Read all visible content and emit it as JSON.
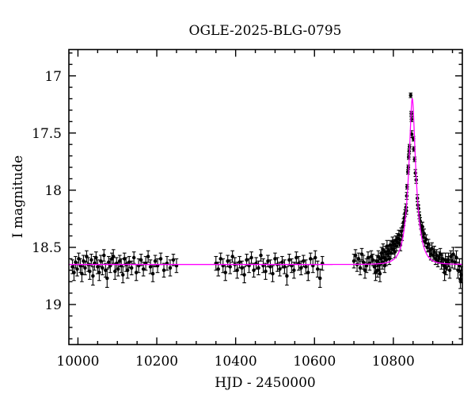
{
  "page": {
    "background": "#ffffff"
  },
  "chart_data": {
    "type": "scatter",
    "title": "OGLE-2025-BLG-0795",
    "xlabel": "HJD - 2450000",
    "ylabel": "I magnitude",
    "x_range": [
      9977,
      10975
    ],
    "y_range_mag": [
      16.77,
      19.35
    ],
    "y_axis_inverted": true,
    "grid": false,
    "legend": null,
    "x_major_ticks": [
      10000,
      10200,
      10400,
      10600,
      10800
    ],
    "x_major_tick_labels": [
      "10000",
      "10200",
      "10400",
      "10600",
      "10800"
    ],
    "x_minor_tick_step": 50,
    "y_major_ticks": [
      17,
      17.5,
      18,
      18.5,
      19
    ],
    "y_major_tick_labels": [
      "17",
      "17.5",
      "18",
      "18.5",
      "19"
    ],
    "y_minor_tick_step": 0.1,
    "colors": {
      "background": "#ffffff",
      "frame": "#000000",
      "data_points": "#000000",
      "error_bars": "#000000",
      "model_curve": "#ff00ff",
      "text": "#000000"
    },
    "model_fit": {
      "kind": "paczynski_microlensing",
      "t0_hjd": 10848,
      "tE_days": 21,
      "u0": 0.27,
      "baseline_I_mag": 18.65,
      "peak_model_I_mag": 17.2
    },
    "points": [
      [
        9986,
        18.67,
        0.06
      ],
      [
        9990,
        18.72,
        0.07
      ],
      [
        9994,
        18.63,
        0.05
      ],
      [
        9998,
        18.69,
        0.06
      ],
      [
        10002,
        18.6,
        0.05
      ],
      [
        10006,
        18.66,
        0.06
      ],
      [
        10010,
        18.73,
        0.07
      ],
      [
        10014,
        18.62,
        0.05
      ],
      [
        10018,
        18.68,
        0.06
      ],
      [
        10022,
        18.58,
        0.05
      ],
      [
        10026,
        18.65,
        0.06
      ],
      [
        10030,
        18.71,
        0.07
      ],
      [
        10034,
        18.61,
        0.05
      ],
      [
        10038,
        18.75,
        0.08
      ],
      [
        10042,
        18.64,
        0.06
      ],
      [
        10046,
        18.59,
        0.05
      ],
      [
        10050,
        18.67,
        0.06
      ],
      [
        10054,
        18.72,
        0.07
      ],
      [
        10058,
        18.62,
        0.05
      ],
      [
        10062,
        18.68,
        0.06
      ],
      [
        10066,
        18.57,
        0.05
      ],
      [
        10070,
        18.7,
        0.06
      ],
      [
        10074,
        18.77,
        0.08
      ],
      [
        10078,
        18.63,
        0.05
      ],
      [
        10082,
        18.66,
        0.06
      ],
      [
        10086,
        18.6,
        0.05
      ],
      [
        10090,
        18.58,
        0.06
      ],
      [
        10094,
        18.71,
        0.07
      ],
      [
        10098,
        18.64,
        0.05
      ],
      [
        10102,
        18.69,
        0.06
      ],
      [
        10106,
        18.62,
        0.05
      ],
      [
        10110,
        18.66,
        0.06
      ],
      [
        10114,
        18.74,
        0.07
      ],
      [
        10118,
        18.6,
        0.05
      ],
      [
        10122,
        18.65,
        0.06
      ],
      [
        10126,
        18.7,
        0.07
      ],
      [
        10130,
        18.63,
        0.05
      ],
      [
        10136,
        18.68,
        0.06
      ],
      [
        10142,
        18.59,
        0.05
      ],
      [
        10148,
        18.72,
        0.07
      ],
      [
        10154,
        18.66,
        0.06
      ],
      [
        10160,
        18.61,
        0.05
      ],
      [
        10166,
        18.69,
        0.06
      ],
      [
        10172,
        18.64,
        0.06
      ],
      [
        10178,
        18.58,
        0.05
      ],
      [
        10184,
        18.67,
        0.06
      ],
      [
        10190,
        18.73,
        0.07
      ],
      [
        10196,
        18.62,
        0.05
      ],
      [
        10202,
        18.66,
        0.06
      ],
      [
        10210,
        18.6,
        0.05
      ],
      [
        10218,
        18.7,
        0.06
      ],
      [
        10226,
        18.64,
        0.06
      ],
      [
        10234,
        18.68,
        0.07
      ],
      [
        10242,
        18.61,
        0.05
      ],
      [
        10250,
        18.66,
        0.06
      ],
      [
        10350,
        18.64,
        0.06
      ],
      [
        10356,
        18.69,
        0.06
      ],
      [
        10362,
        18.6,
        0.05
      ],
      [
        10368,
        18.66,
        0.06
      ],
      [
        10374,
        18.72,
        0.07
      ],
      [
        10380,
        18.62,
        0.05
      ],
      [
        10386,
        18.67,
        0.06
      ],
      [
        10392,
        18.58,
        0.05
      ],
      [
        10398,
        18.65,
        0.06
      ],
      [
        10404,
        18.7,
        0.07
      ],
      [
        10410,
        18.63,
        0.05
      ],
      [
        10416,
        18.68,
        0.06
      ],
      [
        10422,
        18.74,
        0.07
      ],
      [
        10428,
        18.61,
        0.05
      ],
      [
        10434,
        18.66,
        0.06
      ],
      [
        10440,
        18.59,
        0.05
      ],
      [
        10446,
        18.7,
        0.06
      ],
      [
        10452,
        18.64,
        0.05
      ],
      [
        10458,
        18.68,
        0.06
      ],
      [
        10464,
        18.57,
        0.05
      ],
      [
        10470,
        18.66,
        0.06
      ],
      [
        10476,
        18.71,
        0.07
      ],
      [
        10482,
        18.62,
        0.05
      ],
      [
        10488,
        18.67,
        0.06
      ],
      [
        10494,
        18.73,
        0.07
      ],
      [
        10500,
        18.6,
        0.05
      ],
      [
        10506,
        18.65,
        0.06
      ],
      [
        10512,
        18.69,
        0.06
      ],
      [
        10518,
        18.63,
        0.05
      ],
      [
        10524,
        18.67,
        0.06
      ],
      [
        10530,
        18.75,
        0.08
      ],
      [
        10536,
        18.61,
        0.05
      ],
      [
        10542,
        18.66,
        0.06
      ],
      [
        10548,
        18.7,
        0.07
      ],
      [
        10554,
        18.59,
        0.05
      ],
      [
        10560,
        18.64,
        0.06
      ],
      [
        10566,
        18.68,
        0.06
      ],
      [
        10572,
        18.62,
        0.05
      ],
      [
        10578,
        18.67,
        0.06
      ],
      [
        10584,
        18.72,
        0.07
      ],
      [
        10590,
        18.6,
        0.05
      ],
      [
        10596,
        18.66,
        0.06
      ],
      [
        10602,
        18.59,
        0.06
      ],
      [
        10608,
        18.69,
        0.07
      ],
      [
        10614,
        18.77,
        0.08
      ],
      [
        10620,
        18.64,
        0.06
      ],
      [
        10700,
        18.62,
        0.06
      ],
      [
        10704,
        18.57,
        0.05
      ],
      [
        10708,
        18.65,
        0.06
      ],
      [
        10712,
        18.6,
        0.05
      ],
      [
        10716,
        18.68,
        0.06
      ],
      [
        10720,
        18.56,
        0.05
      ],
      [
        10724,
        18.63,
        0.06
      ],
      [
        10728,
        18.7,
        0.07
      ],
      [
        10732,
        18.66,
        0.06
      ],
      [
        10736,
        18.59,
        0.05
      ],
      [
        10740,
        18.64,
        0.06
      ],
      [
        10744,
        18.58,
        0.05
      ],
      [
        10748,
        18.61,
        0.05
      ],
      [
        10752,
        18.67,
        0.06
      ],
      [
        10755,
        18.72,
        0.07
      ],
      [
        10758,
        18.62,
        0.05
      ],
      [
        10760,
        18.7,
        0.06
      ],
      [
        10762,
        18.58,
        0.05
      ],
      [
        10764,
        18.65,
        0.06
      ],
      [
        10766,
        18.73,
        0.07
      ],
      [
        10768,
        18.6,
        0.05
      ],
      [
        10770,
        18.55,
        0.05
      ],
      [
        10772,
        18.63,
        0.06
      ],
      [
        10774,
        18.52,
        0.05
      ],
      [
        10776,
        18.59,
        0.05
      ],
      [
        10778,
        18.66,
        0.06
      ],
      [
        10780,
        18.54,
        0.05
      ],
      [
        10782,
        18.61,
        0.05
      ],
      [
        10784,
        18.49,
        0.05
      ],
      [
        10786,
        18.56,
        0.05
      ],
      [
        10788,
        18.53,
        0.05
      ],
      [
        10790,
        18.6,
        0.05
      ],
      [
        10792,
        18.48,
        0.04
      ],
      [
        10794,
        18.55,
        0.05
      ],
      [
        10796,
        18.51,
        0.04
      ],
      [
        10798,
        18.45,
        0.04
      ],
      [
        10800,
        18.52,
        0.04
      ],
      [
        10802,
        18.47,
        0.04
      ],
      [
        10804,
        18.54,
        0.05
      ],
      [
        10806,
        18.44,
        0.04
      ],
      [
        10808,
        18.49,
        0.04
      ],
      [
        10810,
        18.42,
        0.04
      ],
      [
        10812,
        18.46,
        0.04
      ],
      [
        10814,
        18.39,
        0.04
      ],
      [
        10816,
        18.43,
        0.04
      ],
      [
        10818,
        18.48,
        0.05
      ],
      [
        10820,
        18.36,
        0.03
      ],
      [
        10822,
        18.4,
        0.04
      ],
      [
        10824,
        18.32,
        0.03
      ],
      [
        10826,
        18.28,
        0.03
      ],
      [
        10828,
        18.24,
        0.03
      ],
      [
        10830,
        18.2,
        0.03
      ],
      [
        10832,
        18.15,
        0.03
      ],
      [
        10833,
        18.18,
        0.03
      ],
      [
        10834,
        18.05,
        0.03
      ],
      [
        10835,
        17.97,
        0.02
      ],
      [
        10837,
        17.84,
        0.02
      ],
      [
        10838,
        17.8,
        0.02
      ],
      [
        10839,
        17.71,
        0.02
      ],
      [
        10840,
        17.66,
        0.02
      ],
      [
        10841,
        17.62,
        0.02
      ],
      [
        10844,
        17.17,
        0.02
      ],
      [
        10845.5,
        17.33,
        0.02
      ],
      [
        10846,
        17.38,
        0.02
      ],
      [
        10846.5,
        17.51,
        0.03
      ],
      [
        10851,
        17.55,
        0.02
      ],
      [
        10852,
        17.64,
        0.02
      ],
      [
        10854,
        17.73,
        0.02
      ],
      [
        10856,
        17.85,
        0.03
      ],
      [
        10858,
        17.91,
        0.03
      ],
      [
        10861,
        18.07,
        0.03
      ],
      [
        10862,
        18.13,
        0.03
      ],
      [
        10864,
        18.16,
        0.03
      ],
      [
        10866,
        18.22,
        0.03
      ],
      [
        10868,
        18.27,
        0.03
      ],
      [
        10870,
        18.31,
        0.03
      ],
      [
        10872,
        18.35,
        0.04
      ],
      [
        10874,
        18.32,
        0.04
      ],
      [
        10876,
        18.41,
        0.04
      ],
      [
        10878,
        18.38,
        0.04
      ],
      [
        10880,
        18.45,
        0.04
      ],
      [
        10883,
        18.43,
        0.04
      ],
      [
        10886,
        18.5,
        0.04
      ],
      [
        10889,
        18.47,
        0.04
      ],
      [
        10892,
        18.53,
        0.05
      ],
      [
        10895,
        18.56,
        0.05
      ],
      [
        10898,
        18.51,
        0.05
      ],
      [
        10901,
        18.57,
        0.05
      ],
      [
        10904,
        18.54,
        0.05
      ],
      [
        10907,
        18.6,
        0.05
      ],
      [
        10910,
        18.57,
        0.05
      ],
      [
        10913,
        18.62,
        0.05
      ],
      [
        10916,
        18.59,
        0.05
      ],
      [
        10919,
        18.56,
        0.05
      ],
      [
        10922,
        18.63,
        0.06
      ],
      [
        10925,
        18.6,
        0.05
      ],
      [
        10928,
        18.66,
        0.06
      ],
      [
        10930,
        18.72,
        0.07
      ],
      [
        10932,
        18.61,
        0.06
      ],
      [
        10934,
        18.68,
        0.06
      ],
      [
        10937,
        18.64,
        0.06
      ],
      [
        10940,
        18.61,
        0.06
      ],
      [
        10943,
        18.7,
        0.07
      ],
      [
        10946,
        18.58,
        0.05
      ],
      [
        10949,
        18.62,
        0.06
      ],
      [
        10952,
        18.56,
        0.06
      ],
      [
        10956,
        18.63,
        0.06
      ],
      [
        10960,
        18.59,
        0.06
      ],
      [
        10964,
        18.7,
        0.07
      ],
      [
        10968,
        18.66,
        0.06
      ],
      [
        10970,
        18.78,
        0.08
      ],
      [
        10972,
        18.74,
        0.07
      ]
    ]
  }
}
